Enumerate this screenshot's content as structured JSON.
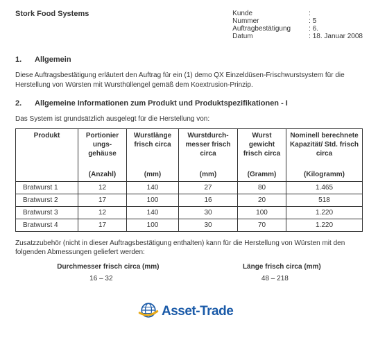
{
  "header": {
    "company": "Stork Food Systems",
    "fields": {
      "kunde_label": "Kunde",
      "kunde_value": ":",
      "nummer_label": "Nummer",
      "nummer_value": ": 5",
      "auftrag_label": "Auftragbestätigung",
      "auftrag_value": ": 6.",
      "datum_label": "Datum",
      "datum_value": ": 18. Januar 2008"
    }
  },
  "section1": {
    "num": "1.",
    "title": "Allgemein",
    "para": "Diese Auftragsbestätigung erläutert den Auftrag für ein (1) demo QX Einzeldüsen-Frischwurstsystem für die Herstellung von Würsten mit Wursthüllengel gemäß dem Koextrusion-Prinzip."
  },
  "section2": {
    "num": "2.",
    "title": "Allgemeine Informationen zum Produkt und Produktspezifikationen  - I",
    "intro": "Das System ist grundsätzlich ausgelegt für die Herstellung von:"
  },
  "table": {
    "columns": [
      "Produkt",
      "Portionier ungs- gehäuse",
      "Wurstlänge frisch circa",
      "Wurstdurch- messer frisch circa",
      "Wurst gewicht frisch circa",
      "Nominell berechnete Kapazität/ Std. frisch circa"
    ],
    "units": [
      "",
      "(Anzahl)",
      "(mm)",
      "(mm)",
      "(Gramm)",
      "(Kilogramm)"
    ],
    "rows": [
      [
        "Bratwurst 1",
        "12",
        "140",
        "27",
        "80",
        "1.465"
      ],
      [
        "Bratwurst 2",
        "17",
        "100",
        "16",
        "20",
        "518"
      ],
      [
        "Bratwurst 3",
        "12",
        "140",
        "30",
        "100",
        "1.220"
      ],
      [
        "Bratwurst 4",
        "17",
        "100",
        "30",
        "70",
        "1.220"
      ]
    ],
    "col_widths": [
      "18%",
      "14%",
      "15%",
      "17%",
      "14%",
      "22%"
    ]
  },
  "footnote": "Zusatzzubehör (nicht in dieser Auftragsbestätigung enthalten) kann für die Herstellung von Würsten mit den folgenden Abmessungen geliefert werden:",
  "dims": {
    "col1_label": "Durchmesser frisch circa (mm)",
    "col2_label": "Länge frisch circa (mm)",
    "col1_val": "16 – 32",
    "col2_val": "48 – 218"
  },
  "watermark": {
    "text": "Asset-Trade",
    "color": "#1a5aa8",
    "globe_color": "#1a5aa8",
    "swoosh_color": "#e6a817"
  }
}
